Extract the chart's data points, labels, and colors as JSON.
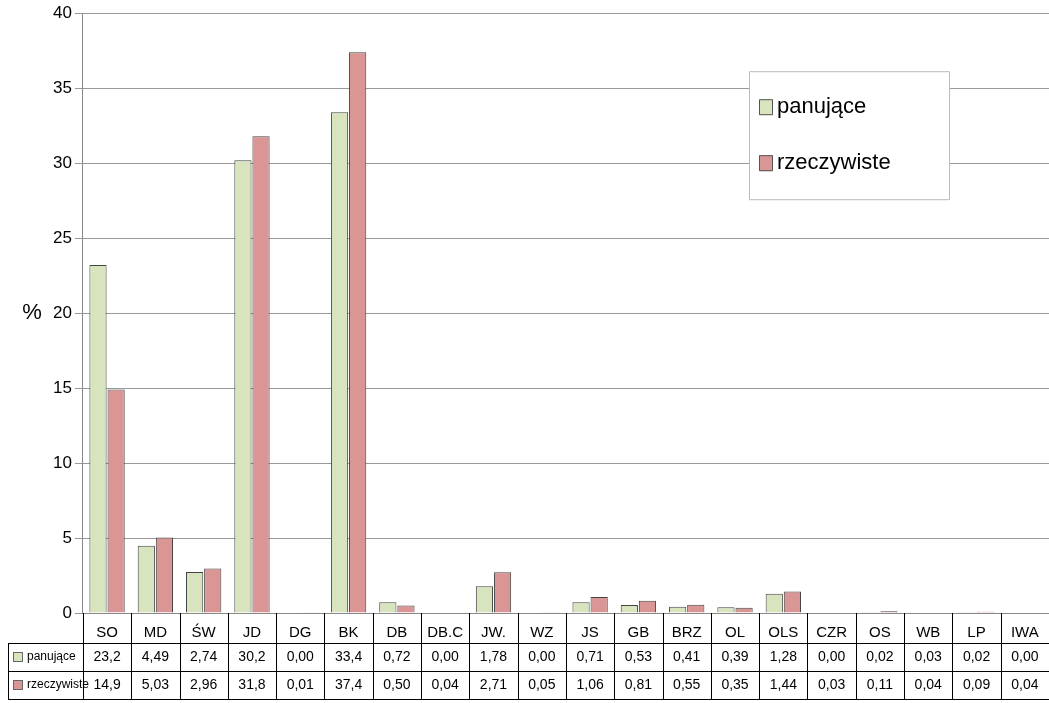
{
  "chart_data": {
    "type": "bar",
    "ylabel": "%",
    "categories": [
      "SO",
      "MD",
      "ŚW",
      "JD",
      "DG",
      "BK",
      "DB",
      "DB.C",
      "JW.",
      "WZ",
      "JS",
      "GB",
      "BRZ",
      "OL",
      "OLS",
      "CZR",
      "OS",
      "WB",
      "LP",
      "IWA"
    ],
    "series": [
      {
        "name": "panujące",
        "color": "#d7e4bd",
        "values": [
          23.2,
          4.49,
          2.74,
          30.2,
          0,
          33.4,
          0.72,
          0,
          1.78,
          0,
          0.71,
          0.53,
          0.41,
          0.39,
          1.28,
          0,
          0.02,
          0.03,
          0.02,
          0
        ],
        "value_labels": [
          "23,2",
          "4,49",
          "2,74",
          "30,2",
          "0,00",
          "33,4",
          "0,72",
          "0,00",
          "1,78",
          "0,00",
          "0,71",
          "0,53",
          "0,41",
          "0,39",
          "1,28",
          "0,00",
          "0,02",
          "0,03",
          "0,02",
          "0,00"
        ]
      },
      {
        "name": "rzeczywiste",
        "color": "#d99694",
        "values": [
          14.9,
          5.03,
          2.96,
          31.8,
          0.01,
          37.4,
          0.5,
          0.04,
          2.71,
          0.05,
          1.06,
          0.81,
          0.55,
          0.35,
          1.44,
          0.03,
          0.11,
          0.04,
          0.09,
          0.04
        ],
        "value_labels": [
          "14,9",
          "5,03",
          "2,96",
          "31,8",
          "0,01",
          "37,4",
          "0,50",
          "0,04",
          "2,71",
          "0,05",
          "1,06",
          "0,81",
          "0,55",
          "0,35",
          "1,44",
          "0,03",
          "0,11",
          "0,04",
          "0,09",
          "0,04"
        ]
      }
    ],
    "ylim": [
      0,
      40
    ],
    "yticks": [
      0,
      5,
      10,
      15,
      20,
      25,
      30,
      35,
      40
    ],
    "grid": "y",
    "legend": "top right"
  }
}
